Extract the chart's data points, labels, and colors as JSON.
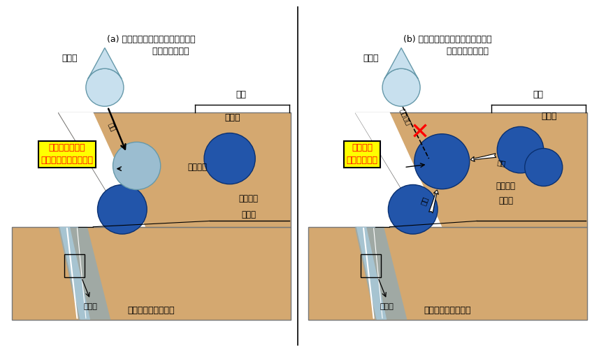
{
  "title_a": "(a) 割れ目に沿った地下水の流れが\n              生じている場合",
  "title_b": "(b) 割れ目に沿った地下水の流れが\n              生じていない場合",
  "sand_color": "#D4A870",
  "dark_blue": "#2255AA",
  "light_blue_drop": "#C8E0EE",
  "light_blue_circle": "#9BBDD0",
  "water_blue": "#9BBDCC",
  "label_surface": "地表水",
  "label_rock": "岩石",
  "label_pore": "間隙水",
  "label_crack_water": "割れ目水",
  "label_crack": "割れ 目",
  "label_crack2": "割れ目",
  "label_mudrock": "割れ目を有する泥岩",
  "label_supply": "供給",
  "label_no_supply": "供給なし",
  "label_diffusion": "拡散",
  "box_text_a": "間隙水と比べて\nより地表水に近い組成",
  "box_text_b": "間隙水と\nほぼ同じ組成",
  "box_color": "#FFFF00",
  "box_text_color": "#FF0000",
  "figsize": [
    8.57,
    5.04
  ],
  "dpi": 100
}
